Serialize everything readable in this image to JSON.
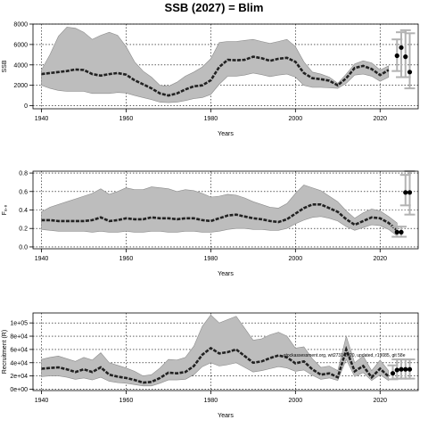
{
  "figure": {
    "title": "SSB (2027)  = Blim"
  },
  "chart_data": [
    {
      "type": "line",
      "ylabel": "SSB",
      "xlabel": "Years",
      "xlim": [
        1938,
        2029
      ],
      "ylim": [
        -300,
        8000
      ],
      "x_ticks": [
        1940,
        1960,
        1980,
        2000,
        2020
      ],
      "y_ticks": [
        0,
        2000,
        4000,
        6000,
        8000
      ],
      "y_tick_labels": [
        "0",
        "2000",
        "4000",
        "6000",
        "8000"
      ],
      "grid": true,
      "series": [
        {
          "role": "median",
          "x": [
            1940,
            1942,
            1944,
            1946,
            1948,
            1950,
            1952,
            1954,
            1956,
            1958,
            1960,
            1962,
            1964,
            1966,
            1968,
            1970,
            1972,
            1974,
            1976,
            1978,
            1980,
            1982,
            1984,
            1986,
            1988,
            1990,
            1992,
            1994,
            1996,
            1998,
            2000,
            2002,
            2004,
            2006,
            2008,
            2010,
            2012,
            2014,
            2016,
            2018,
            2020,
            2022
          ],
          "y": [
            3100,
            3200,
            3300,
            3400,
            3550,
            3500,
            3100,
            2950,
            3100,
            3200,
            3050,
            2500,
            2100,
            1700,
            1200,
            1000,
            1200,
            1600,
            1900,
            2000,
            2500,
            3800,
            4500,
            4450,
            4500,
            4800,
            4650,
            4400,
            4600,
            4700,
            4300,
            3200,
            2700,
            2600,
            2450,
            2000,
            2700,
            3700,
            3900,
            3600,
            3000,
            3500
          ]
        },
        {
          "role": "confidence-band",
          "x": [
            1940,
            1942,
            1944,
            1946,
            1948,
            1950,
            1952,
            1954,
            1956,
            1958,
            1960,
            1962,
            1964,
            1966,
            1968,
            1970,
            1972,
            1974,
            1976,
            1978,
            1980,
            1982,
            1984,
            1986,
            1988,
            1990,
            1992,
            1994,
            1996,
            1998,
            2000,
            2002,
            2004,
            2006,
            2008,
            2010,
            2012,
            2014,
            2016,
            2018,
            2020,
            2022
          ],
          "lower": [
            2000,
            1700,
            1500,
            1400,
            1400,
            1400,
            1200,
            1200,
            1200,
            1300,
            1250,
            1000,
            800,
            600,
            350,
            300,
            350,
            500,
            700,
            800,
            1100,
            2100,
            2900,
            2900,
            3000,
            3200,
            3050,
            2850,
            3000,
            3100,
            2800,
            2000,
            1800,
            1800,
            1750,
            1700,
            2200,
            3000,
            3100,
            2900,
            2400,
            2800
          ],
          "upper": [
            3500,
            5000,
            6800,
            7700,
            7600,
            7200,
            6500,
            6900,
            7200,
            6900,
            5800,
            4300,
            3400,
            2800,
            2000,
            1900,
            2300,
            2900,
            3300,
            3800,
            4600,
            6200,
            6300,
            6300,
            6400,
            6500,
            6300,
            6100,
            6300,
            6500,
            5800,
            4300,
            3300,
            3100,
            2800,
            2200,
            3100,
            4100,
            4400,
            4200,
            3500,
            3900
          ]
        },
        {
          "role": "projection-points",
          "x": [
            2024,
            2025,
            2026,
            2027
          ],
          "y": [
            4900,
            5700,
            4800,
            3300
          ],
          "lower": [
            3400,
            2800,
            2800,
            1700
          ],
          "upper": [
            6500,
            7200,
            7400,
            7100
          ]
        }
      ]
    },
    {
      "type": "line",
      "ylabel": "Fₐ.₈",
      "xlabel": "Years",
      "xlim": [
        1938,
        2029
      ],
      "ylim": [
        -0.02,
        0.82
      ],
      "x_ticks": [
        1940,
        1960,
        1980,
        2000,
        2020
      ],
      "y_ticks": [
        0.0,
        0.2,
        0.4,
        0.6,
        0.8
      ],
      "y_tick_labels": [
        "0.0",
        "0.2",
        "0.4",
        "0.6",
        "0.8"
      ],
      "grid": true,
      "series": [
        {
          "role": "median",
          "x": [
            1940,
            1942,
            1944,
            1946,
            1948,
            1950,
            1952,
            1954,
            1956,
            1958,
            1960,
            1962,
            1964,
            1966,
            1968,
            1970,
            1972,
            1974,
            1976,
            1978,
            1980,
            1982,
            1984,
            1986,
            1988,
            1990,
            1992,
            1994,
            1996,
            1998,
            2000,
            2002,
            2004,
            2006,
            2008,
            2010,
            2012,
            2014,
            2016,
            2018,
            2020,
            2022,
            2024
          ],
          "y": [
            0.29,
            0.29,
            0.28,
            0.28,
            0.28,
            0.28,
            0.29,
            0.32,
            0.28,
            0.29,
            0.31,
            0.3,
            0.3,
            0.32,
            0.31,
            0.31,
            0.3,
            0.31,
            0.31,
            0.29,
            0.28,
            0.31,
            0.34,
            0.35,
            0.33,
            0.31,
            0.3,
            0.28,
            0.27,
            0.3,
            0.36,
            0.42,
            0.46,
            0.46,
            0.42,
            0.38,
            0.3,
            0.24,
            0.28,
            0.32,
            0.31,
            0.26,
            0.18
          ]
        },
        {
          "role": "confidence-band",
          "x": [
            1940,
            1942,
            1944,
            1946,
            1948,
            1950,
            1952,
            1954,
            1956,
            1958,
            1960,
            1962,
            1964,
            1966,
            1968,
            1970,
            1972,
            1974,
            1976,
            1978,
            1980,
            1982,
            1984,
            1986,
            1988,
            1990,
            1992,
            1994,
            1996,
            1998,
            2000,
            2002,
            2004,
            2006,
            2008,
            2010,
            2012,
            2014,
            2016,
            2018,
            2020,
            2022,
            2024
          ],
          "lower": [
            0.19,
            0.18,
            0.17,
            0.17,
            0.17,
            0.17,
            0.16,
            0.17,
            0.16,
            0.16,
            0.17,
            0.16,
            0.16,
            0.17,
            0.17,
            0.16,
            0.16,
            0.17,
            0.17,
            0.16,
            0.16,
            0.17,
            0.19,
            0.2,
            0.2,
            0.19,
            0.19,
            0.18,
            0.18,
            0.2,
            0.25,
            0.29,
            0.32,
            0.33,
            0.31,
            0.28,
            0.22,
            0.18,
            0.21,
            0.24,
            0.23,
            0.19,
            0.12
          ],
          "upper": [
            0.38,
            0.43,
            0.46,
            0.49,
            0.52,
            0.55,
            0.58,
            0.63,
            0.57,
            0.6,
            0.64,
            0.62,
            0.62,
            0.65,
            0.64,
            0.63,
            0.6,
            0.62,
            0.61,
            0.58,
            0.54,
            0.55,
            0.57,
            0.56,
            0.53,
            0.49,
            0.46,
            0.43,
            0.42,
            0.47,
            0.58,
            0.67,
            0.64,
            0.61,
            0.55,
            0.49,
            0.39,
            0.31,
            0.37,
            0.41,
            0.39,
            0.33,
            0.26
          ]
        },
        {
          "role": "projection-points",
          "x": [
            2024,
            2025,
            2026,
            2027
          ],
          "y": [
            0.16,
            0.16,
            0.59,
            0.59
          ],
          "lower": [
            0.11,
            0.11,
            0.45,
            0.35
          ],
          "upper": [
            0.22,
            0.22,
            0.78,
            0.82
          ]
        }
      ]
    },
    {
      "type": "line",
      "ylabel": "Recruitment (R)",
      "xlabel": "Years",
      "xlim": [
        1938,
        2029
      ],
      "ylim": [
        -2000,
        115000
      ],
      "x_ticks": [
        1940,
        1960,
        1980,
        2000,
        2020
      ],
      "y_ticks": [
        0,
        20000,
        40000,
        60000,
        80000,
        100000
      ],
      "y_tick_labels": [
        "0e+00",
        "2e+04",
        "4e+04",
        "6e+04",
        "8e+04",
        "1e+05"
      ],
      "grid": true,
      "annotation": "stockassessment.org, wit2731 2020, updated, r19085, git 58e",
      "series": [
        {
          "role": "median",
          "x": [
            1940,
            1942,
            1944,
            1946,
            1948,
            1950,
            1952,
            1954,
            1956,
            1958,
            1960,
            1962,
            1964,
            1966,
            1968,
            1970,
            1972,
            1974,
            1976,
            1978,
            1980,
            1982,
            1984,
            1986,
            1988,
            1990,
            1992,
            1994,
            1996,
            1998,
            2000,
            2002,
            2004,
            2006,
            2008,
            2010,
            2012,
            2014,
            2016,
            2018,
            2020,
            2022
          ],
          "y": [
            31000,
            32000,
            33000,
            30000,
            26000,
            30000,
            26000,
            33000,
            22000,
            19000,
            17000,
            14000,
            10000,
            11000,
            17000,
            25000,
            24000,
            26000,
            35000,
            52000,
            62000,
            54000,
            56000,
            60000,
            50000,
            40000,
            42000,
            47000,
            51000,
            48000,
            39000,
            42000,
            30000,
            22000,
            24000,
            18000,
            60000,
            27000,
            35000,
            18000,
            31000,
            19000
          ]
        },
        {
          "role": "confidence-band",
          "x": [
            1940,
            1942,
            1944,
            1946,
            1948,
            1950,
            1952,
            1954,
            1956,
            1958,
            1960,
            1962,
            1964,
            1966,
            1968,
            1970,
            1972,
            1974,
            1976,
            1978,
            1980,
            1982,
            1984,
            1986,
            1988,
            1990,
            1992,
            1994,
            1996,
            1998,
            2000,
            2002,
            2004,
            2006,
            2008,
            2010,
            2012,
            2014,
            2016,
            2018,
            2020,
            2022
          ],
          "lower": [
            19000,
            20000,
            20000,
            18000,
            15000,
            17000,
            14000,
            18000,
            12000,
            10000,
            9000,
            7000,
            5000,
            5000,
            9000,
            14000,
            14000,
            15000,
            22000,
            34000,
            40000,
            35000,
            37000,
            40000,
            33000,
            26000,
            28000,
            31000,
            34000,
            32000,
            27000,
            29000,
            21000,
            15000,
            17000,
            13000,
            45000,
            19000,
            25000,
            13000,
            22000,
            13000
          ],
          "upper": [
            45000,
            48000,
            50000,
            46000,
            42000,
            48000,
            44000,
            55000,
            40000,
            36000,
            32000,
            27000,
            20000,
            22000,
            32000,
            45000,
            44000,
            48000,
            65000,
            95000,
            112000,
            100000,
            105000,
            110000,
            92000,
            74000,
            76000,
            82000,
            86000,
            80000,
            62000,
            64000,
            46000,
            33000,
            35000,
            28000,
            80000,
            40000,
            50000,
            28000,
            44000,
            28000
          ]
        },
        {
          "role": "projection-points",
          "x": [
            2023,
            2024,
            2025,
            2026,
            2027
          ],
          "y": [
            24000,
            29000,
            30000,
            30000,
            30000
          ],
          "lower": [
            15000,
            16000,
            16000,
            16000,
            16000
          ],
          "upper": [
            36000,
            45000,
            45000,
            45000,
            45000
          ]
        }
      ]
    }
  ]
}
